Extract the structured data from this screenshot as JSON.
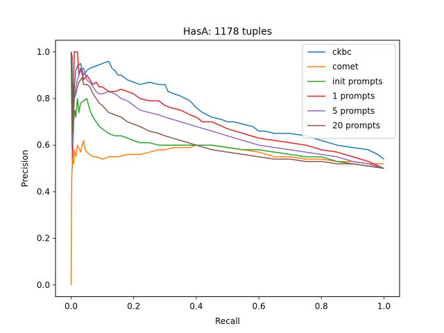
{
  "chart_data": {
    "type": "line",
    "title": "HasA: 1178 tuples",
    "xlabel": "Recall",
    "ylabel": "Precision",
    "xlim": [
      -0.05,
      1.05
    ],
    "ylim": [
      -0.05,
      1.05
    ],
    "xticks": [
      0.0,
      0.2,
      0.4,
      0.6,
      0.8,
      1.0
    ],
    "yticks": [
      0.0,
      0.2,
      0.4,
      0.6,
      0.8,
      1.0
    ],
    "xtick_labels": [
      "0.0",
      "0.2",
      "0.4",
      "0.6",
      "0.8",
      "1.0"
    ],
    "ytick_labels": [
      "0.0",
      "0.2",
      "0.4",
      "0.6",
      "0.8",
      "1.0"
    ],
    "grid": false,
    "legend_position": "upper right",
    "series": [
      {
        "name": "ckbc",
        "color": "#1f77b4",
        "x": [
          0.0,
          0.003,
          0.004,
          0.006,
          0.01,
          0.015,
          0.02,
          0.03,
          0.04,
          0.05,
          0.06,
          0.08,
          0.1,
          0.12,
          0.13,
          0.14,
          0.15,
          0.16,
          0.18,
          0.2,
          0.22,
          0.25,
          0.28,
          0.3,
          0.31,
          0.33,
          0.35,
          0.38,
          0.4,
          0.42,
          0.45,
          0.48,
          0.5,
          0.52,
          0.55,
          0.58,
          0.6,
          0.62,
          0.65,
          0.7,
          0.75,
          0.8,
          0.85,
          0.9,
          0.95,
          0.98,
          1.0
        ],
        "y": [
          1.0,
          0.98,
          0.5,
          0.7,
          0.85,
          0.92,
          0.94,
          0.95,
          0.9,
          0.92,
          0.93,
          0.94,
          0.95,
          0.96,
          0.93,
          0.92,
          0.9,
          0.9,
          0.88,
          0.87,
          0.86,
          0.87,
          0.86,
          0.86,
          0.83,
          0.82,
          0.81,
          0.79,
          0.76,
          0.74,
          0.72,
          0.71,
          0.7,
          0.7,
          0.69,
          0.68,
          0.66,
          0.66,
          0.65,
          0.65,
          0.64,
          0.62,
          0.6,
          0.59,
          0.58,
          0.56,
          0.54
        ]
      },
      {
        "name": "comet",
        "color": "#ff7f0e",
        "x": [
          0.0,
          0.001,
          0.002,
          0.003,
          0.005,
          0.008,
          0.01,
          0.015,
          0.02,
          0.03,
          0.035,
          0.04,
          0.045,
          0.05,
          0.06,
          0.07,
          0.08,
          0.1,
          0.12,
          0.15,
          0.18,
          0.2,
          0.22,
          0.25,
          0.28,
          0.3,
          0.33,
          0.35,
          0.38,
          0.4,
          0.45,
          0.5,
          0.55,
          0.6,
          0.65,
          0.7,
          0.75,
          0.8,
          0.85,
          0.9,
          0.95,
          1.0
        ],
        "y": [
          0.0,
          0.3,
          0.45,
          0.5,
          0.55,
          0.52,
          0.58,
          0.55,
          0.6,
          0.57,
          0.6,
          0.62,
          0.58,
          0.57,
          0.56,
          0.55,
          0.55,
          0.54,
          0.55,
          0.55,
          0.56,
          0.56,
          0.56,
          0.57,
          0.58,
          0.58,
          0.59,
          0.59,
          0.59,
          0.6,
          0.6,
          0.59,
          0.58,
          0.57,
          0.55,
          0.55,
          0.54,
          0.54,
          0.53,
          0.53,
          0.52,
          0.52
        ]
      },
      {
        "name": "init prompts",
        "color": "#2ca02c",
        "x": [
          0.0,
          0.003,
          0.005,
          0.008,
          0.01,
          0.012,
          0.015,
          0.02,
          0.025,
          0.03,
          0.04,
          0.05,
          0.06,
          0.07,
          0.08,
          0.09,
          0.1,
          0.12,
          0.14,
          0.16,
          0.18,
          0.2,
          0.22,
          0.25,
          0.28,
          0.3,
          0.35,
          0.4,
          0.45,
          0.5,
          0.55,
          0.6,
          0.65,
          0.7,
          0.75,
          0.8,
          0.85,
          0.9,
          0.95,
          1.0
        ],
        "y": [
          1.0,
          0.6,
          0.57,
          0.7,
          0.73,
          0.75,
          0.72,
          0.8,
          0.74,
          0.78,
          0.79,
          0.8,
          0.75,
          0.72,
          0.7,
          0.68,
          0.67,
          0.65,
          0.64,
          0.64,
          0.63,
          0.62,
          0.61,
          0.61,
          0.6,
          0.6,
          0.6,
          0.6,
          0.6,
          0.59,
          0.58,
          0.58,
          0.57,
          0.56,
          0.55,
          0.55,
          0.53,
          0.52,
          0.51,
          0.5
        ]
      },
      {
        "name": "1 prompts",
        "color": "#d62728",
        "x": [
          0.0,
          0.003,
          0.004,
          0.006,
          0.01,
          0.02,
          0.025,
          0.03,
          0.04,
          0.05,
          0.06,
          0.07,
          0.08,
          0.09,
          0.1,
          0.12,
          0.14,
          0.16,
          0.18,
          0.2,
          0.22,
          0.25,
          0.28,
          0.3,
          0.32,
          0.35,
          0.38,
          0.4,
          0.42,
          0.45,
          0.5,
          0.55,
          0.6,
          0.65,
          0.7,
          0.75,
          0.8,
          0.85,
          0.9,
          0.95,
          1.0
        ],
        "y": [
          1.0,
          0.98,
          0.55,
          0.8,
          1.0,
          1.0,
          0.9,
          0.93,
          0.88,
          0.9,
          0.88,
          0.86,
          0.87,
          0.85,
          0.85,
          0.83,
          0.83,
          0.84,
          0.83,
          0.82,
          0.8,
          0.79,
          0.79,
          0.77,
          0.76,
          0.75,
          0.73,
          0.72,
          0.7,
          0.7,
          0.67,
          0.65,
          0.63,
          0.62,
          0.61,
          0.6,
          0.58,
          0.57,
          0.55,
          0.53,
          0.5
        ]
      },
      {
        "name": "5 prompts",
        "color": "#9467bd",
        "x": [
          0.0,
          0.003,
          0.005,
          0.008,
          0.01,
          0.015,
          0.02,
          0.025,
          0.03,
          0.04,
          0.05,
          0.06,
          0.07,
          0.08,
          0.09,
          0.1,
          0.12,
          0.14,
          0.16,
          0.18,
          0.2,
          0.22,
          0.25,
          0.28,
          0.3,
          0.35,
          0.4,
          0.45,
          0.5,
          0.55,
          0.6,
          0.65,
          0.7,
          0.75,
          0.8,
          0.85,
          0.9,
          0.95,
          1.0
        ],
        "y": [
          1.0,
          0.95,
          0.6,
          0.75,
          0.8,
          0.85,
          0.88,
          0.9,
          0.92,
          0.93,
          0.88,
          0.87,
          0.85,
          0.83,
          0.82,
          0.82,
          0.83,
          0.82,
          0.8,
          0.79,
          0.77,
          0.75,
          0.74,
          0.73,
          0.72,
          0.7,
          0.68,
          0.66,
          0.64,
          0.62,
          0.6,
          0.59,
          0.58,
          0.57,
          0.56,
          0.55,
          0.53,
          0.52,
          0.5
        ]
      },
      {
        "name": "20 prompts",
        "color": "#8c564b",
        "x": [
          0.0,
          0.003,
          0.005,
          0.008,
          0.01,
          0.015,
          0.02,
          0.025,
          0.03,
          0.035,
          0.04,
          0.05,
          0.06,
          0.07,
          0.08,
          0.09,
          0.1,
          0.12,
          0.14,
          0.16,
          0.18,
          0.2,
          0.22,
          0.25,
          0.28,
          0.3,
          0.35,
          0.4,
          0.45,
          0.5,
          0.55,
          0.6,
          0.65,
          0.7,
          0.75,
          0.8,
          0.85,
          0.9,
          0.95,
          1.0
        ],
        "y": [
          1.0,
          0.9,
          0.65,
          0.75,
          0.8,
          0.82,
          0.85,
          0.87,
          0.88,
          0.89,
          0.86,
          0.86,
          0.85,
          0.82,
          0.8,
          0.78,
          0.77,
          0.74,
          0.73,
          0.72,
          0.7,
          0.69,
          0.68,
          0.66,
          0.65,
          0.64,
          0.62,
          0.6,
          0.58,
          0.57,
          0.56,
          0.55,
          0.54,
          0.54,
          0.53,
          0.53,
          0.52,
          0.52,
          0.51,
          0.5
        ]
      }
    ]
  }
}
